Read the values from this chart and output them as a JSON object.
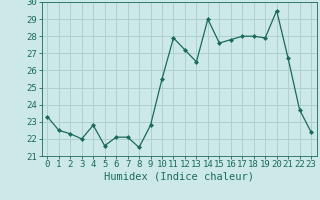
{
  "x": [
    0,
    1,
    2,
    3,
    4,
    5,
    6,
    7,
    8,
    9,
    10,
    11,
    12,
    13,
    14,
    15,
    16,
    17,
    18,
    19,
    20,
    21,
    22,
    23
  ],
  "y": [
    23.3,
    22.5,
    22.3,
    22.0,
    22.8,
    21.6,
    22.1,
    22.1,
    21.5,
    22.8,
    25.5,
    27.9,
    27.2,
    26.5,
    29.0,
    27.6,
    27.8,
    28.0,
    28.0,
    27.9,
    29.5,
    26.7,
    23.7,
    22.4
  ],
  "xlabel": "Humidex (Indice chaleur)",
  "ylim": [
    21,
    30
  ],
  "yticks": [
    21,
    22,
    23,
    24,
    25,
    26,
    27,
    28,
    29,
    30
  ],
  "xlim": [
    -0.5,
    23.5
  ],
  "line_color": "#1a6b5a",
  "marker": "D",
  "marker_size": 2.0,
  "bg_color": "#cce8e8",
  "grid_color": "#b0d0d0",
  "tick_label_fontsize": 6.5,
  "xlabel_fontsize": 7.5
}
